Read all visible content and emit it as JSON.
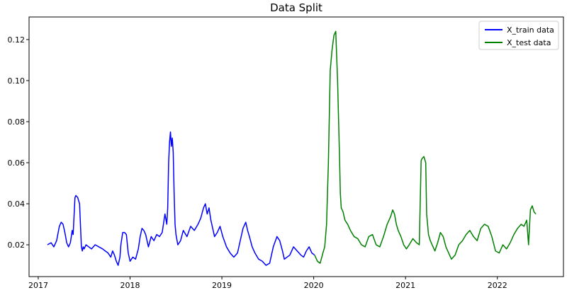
{
  "chart_data": {
    "type": "line",
    "title": "Data Split",
    "xlabel": "",
    "ylabel": "",
    "xlim": [
      2016.9,
      2022.72
    ],
    "ylim": [
      0.0045,
      0.131
    ],
    "grid": false,
    "legend_position": "top-right",
    "xticks": [
      2017,
      2018,
      2019,
      2020,
      2021,
      2022
    ],
    "xtick_labels": [
      "2017",
      "2018",
      "2019",
      "2020",
      "2021",
      "2022"
    ],
    "yticks": [
      0.02,
      0.04,
      0.06,
      0.08,
      0.1,
      0.12
    ],
    "ytick_labels": [
      "0.02",
      "0.04",
      "0.06",
      "0.08",
      "0.10",
      "0.12"
    ],
    "series": [
      {
        "name": "X_train data",
        "color": "#0000ff",
        "x": [
          2017.1,
          2017.14,
          2017.17,
          2017.2,
          2017.23,
          2017.25,
          2017.27,
          2017.29,
          2017.31,
          2017.33,
          2017.35,
          2017.37,
          2017.38,
          2017.4,
          2017.41,
          2017.43,
          2017.45,
          2017.47,
          2017.48,
          2017.49,
          2017.5,
          2017.52,
          2017.55,
          2017.58,
          2017.62,
          2017.66,
          2017.7,
          2017.73,
          2017.76,
          2017.79,
          2017.81,
          2017.83,
          2017.85,
          2017.87,
          2017.89,
          2017.9,
          2017.92,
          2017.94,
          2017.96,
          2017.98,
          2018.0,
          2018.03,
          2018.06,
          2018.09,
          2018.11,
          2018.13,
          2018.15,
          2018.17,
          2018.2,
          2018.23,
          2018.26,
          2018.29,
          2018.32,
          2018.35,
          2018.38,
          2018.4,
          2018.41,
          2018.42,
          2018.43,
          2018.44,
          2018.45,
          2018.46,
          2018.47,
          2018.48,
          2018.49,
          2018.5,
          2018.52,
          2018.55,
          2018.58,
          2018.62,
          2018.66,
          2018.7,
          2018.74,
          2018.77,
          2018.8,
          2018.82,
          2018.84,
          2018.86,
          2018.88,
          2018.9,
          2018.92,
          2018.95,
          2018.98,
          2019.01,
          2019.05,
          2019.09,
          2019.13,
          2019.17,
          2019.2,
          2019.23,
          2019.26,
          2019.28,
          2019.3,
          2019.33,
          2019.36,
          2019.4,
          2019.44,
          2019.48,
          2019.52,
          2019.56,
          2019.6,
          2019.63,
          2019.66,
          2019.68,
          2019.71,
          2019.74,
          2019.78,
          2019.82,
          2019.86,
          2019.89,
          2019.92,
          2019.95,
          2019.98,
          2020.01
        ],
        "y": [
          0.02,
          0.021,
          0.019,
          0.022,
          0.029,
          0.031,
          0.03,
          0.026,
          0.021,
          0.019,
          0.021,
          0.027,
          0.025,
          0.043,
          0.044,
          0.043,
          0.04,
          0.019,
          0.017,
          0.019,
          0.018,
          0.02,
          0.019,
          0.018,
          0.02,
          0.019,
          0.018,
          0.017,
          0.016,
          0.014,
          0.017,
          0.015,
          0.012,
          0.01,
          0.014,
          0.02,
          0.026,
          0.026,
          0.025,
          0.016,
          0.012,
          0.014,
          0.013,
          0.018,
          0.024,
          0.028,
          0.027,
          0.025,
          0.019,
          0.024,
          0.022,
          0.025,
          0.024,
          0.026,
          0.035,
          0.03,
          0.038,
          0.06,
          0.07,
          0.075,
          0.068,
          0.072,
          0.065,
          0.045,
          0.03,
          0.025,
          0.02,
          0.022,
          0.027,
          0.024,
          0.029,
          0.027,
          0.03,
          0.033,
          0.038,
          0.04,
          0.035,
          0.038,
          0.032,
          0.028,
          0.024,
          0.026,
          0.029,
          0.024,
          0.019,
          0.016,
          0.014,
          0.016,
          0.022,
          0.028,
          0.031,
          0.027,
          0.024,
          0.019,
          0.016,
          0.013,
          0.012,
          0.01,
          0.011,
          0.019,
          0.024,
          0.022,
          0.017,
          0.013,
          0.014,
          0.015,
          0.019,
          0.017,
          0.015,
          0.014,
          0.017,
          0.019,
          0.016,
          0.015
        ]
      },
      {
        "name": "X_test data",
        "color": "#008000",
        "x": [
          2020.01,
          2020.04,
          2020.07,
          2020.1,
          2020.12,
          2020.14,
          2020.16,
          2020.18,
          2020.2,
          2020.22,
          2020.24,
          2020.26,
          2020.28,
          2020.29,
          2020.3,
          2020.32,
          2020.34,
          2020.37,
          2020.4,
          2020.44,
          2020.48,
          2020.52,
          2020.56,
          2020.6,
          2020.64,
          2020.68,
          2020.72,
          2020.76,
          2020.8,
          2020.84,
          2020.86,
          2020.88,
          2020.9,
          2020.92,
          2020.95,
          2020.98,
          2021.01,
          2021.04,
          2021.08,
          2021.12,
          2021.15,
          2021.17,
          2021.18,
          2021.2,
          2021.22,
          2021.23,
          2021.25,
          2021.27,
          2021.29,
          2021.32,
          2021.35,
          2021.38,
          2021.41,
          2021.44,
          2021.47,
          2021.5,
          2021.54,
          2021.58,
          2021.62,
          2021.66,
          2021.7,
          2021.74,
          2021.78,
          2021.82,
          2021.86,
          2021.9,
          2021.94,
          2021.98,
          2022.02,
          2022.06,
          2022.1,
          2022.14,
          2022.18,
          2022.22,
          2022.26,
          2022.29,
          2022.32,
          2022.34,
          2022.36,
          2022.38,
          2022.4,
          2022.42
        ],
        "y": [
          0.015,
          0.012,
          0.011,
          0.016,
          0.019,
          0.03,
          0.06,
          0.105,
          0.115,
          0.122,
          0.124,
          0.1,
          0.065,
          0.045,
          0.038,
          0.036,
          0.032,
          0.03,
          0.027,
          0.024,
          0.023,
          0.02,
          0.019,
          0.024,
          0.025,
          0.02,
          0.019,
          0.024,
          0.03,
          0.034,
          0.037,
          0.035,
          0.03,
          0.027,
          0.024,
          0.02,
          0.018,
          0.02,
          0.023,
          0.021,
          0.02,
          0.061,
          0.062,
          0.063,
          0.06,
          0.035,
          0.025,
          0.022,
          0.02,
          0.017,
          0.021,
          0.026,
          0.024,
          0.019,
          0.016,
          0.013,
          0.015,
          0.02,
          0.022,
          0.025,
          0.027,
          0.024,
          0.022,
          0.028,
          0.03,
          0.029,
          0.024,
          0.017,
          0.016,
          0.02,
          0.018,
          0.021,
          0.025,
          0.028,
          0.03,
          0.029,
          0.032,
          0.02,
          0.037,
          0.039,
          0.036,
          0.035
        ]
      }
    ]
  }
}
